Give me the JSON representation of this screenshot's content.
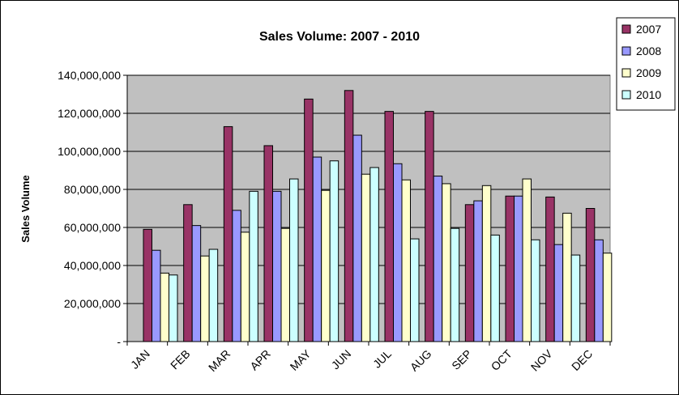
{
  "chart_data": {
    "type": "bar",
    "title": "Sales Volume: 2007 - 2010",
    "xlabel": "",
    "ylabel": "Sales Volume",
    "ylim": [
      0,
      140000000
    ],
    "y_ticks": [
      "-",
      "20,000,000",
      "40,000,000",
      "60,000,000",
      "80,000,000",
      "100,000,000",
      "120,000,000",
      "140,000,000"
    ],
    "categories": [
      "JAN",
      "FEB",
      "MAR",
      "APR",
      "MAY",
      "JUN",
      "JUL",
      "AUG",
      "SEP",
      "OCT",
      "NOV",
      "DEC"
    ],
    "grid": true,
    "legend_position": "top-right",
    "series": [
      {
        "name": "2007",
        "color": "#993366",
        "values": [
          59000000,
          72000000,
          113000000,
          103000000,
          127500000,
          132000000,
          121000000,
          121000000,
          72000000,
          76500000,
          76000000,
          70000000
        ]
      },
      {
        "name": "2008",
        "color": "#9999ff",
        "values": [
          48000000,
          61000000,
          69000000,
          79000000,
          97000000,
          108500000,
          93500000,
          87000000,
          74000000,
          76500000,
          51000000,
          53500000
        ]
      },
      {
        "name": "2009",
        "color": "#ffffcc",
        "values": [
          36000000,
          45000000,
          57500000,
          59500000,
          79500000,
          88000000,
          85000000,
          83000000,
          82000000,
          85500000,
          67500000,
          46500000
        ]
      },
      {
        "name": "2010",
        "color": "#ccffff",
        "values": [
          35000000,
          48500000,
          79000000,
          85500000,
          95000000,
          91500000,
          54000000,
          59500000,
          56000000,
          53500000,
          45500000,
          null
        ]
      }
    ],
    "plot_background": "#c0c0c0"
  }
}
